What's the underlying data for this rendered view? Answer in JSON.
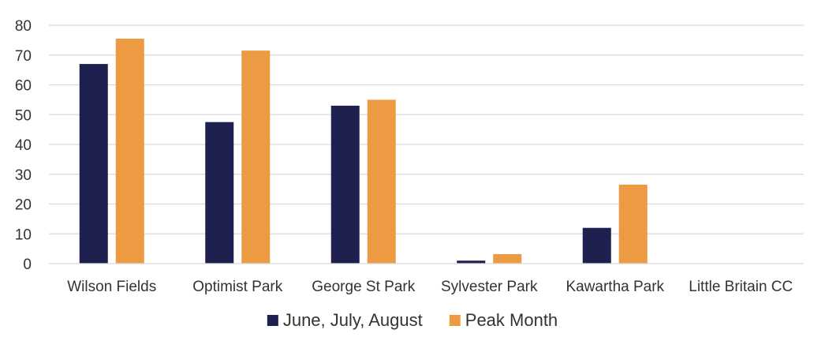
{
  "chart_data": {
    "type": "bar",
    "title": "",
    "xlabel": "",
    "ylabel": "",
    "ylim": [
      0,
      80
    ],
    "yticks": [
      0,
      10,
      20,
      30,
      40,
      50,
      60,
      70,
      80
    ],
    "grid": "horizontal",
    "legend_position": "bottom",
    "categories": [
      "Wilson Fields",
      "Optimist Park",
      "George St Park",
      "Sylvester Park",
      "Kawartha Park",
      "Little Britain CC"
    ],
    "series": [
      {
        "name": "June, July, August",
        "color": "#1e2050",
        "values": [
          67,
          47.5,
          53,
          1,
          12,
          0
        ]
      },
      {
        "name": "Peak Month",
        "color": "#ec9b42",
        "values": [
          75.5,
          71.5,
          55,
          3.2,
          26.5,
          0
        ]
      }
    ]
  }
}
